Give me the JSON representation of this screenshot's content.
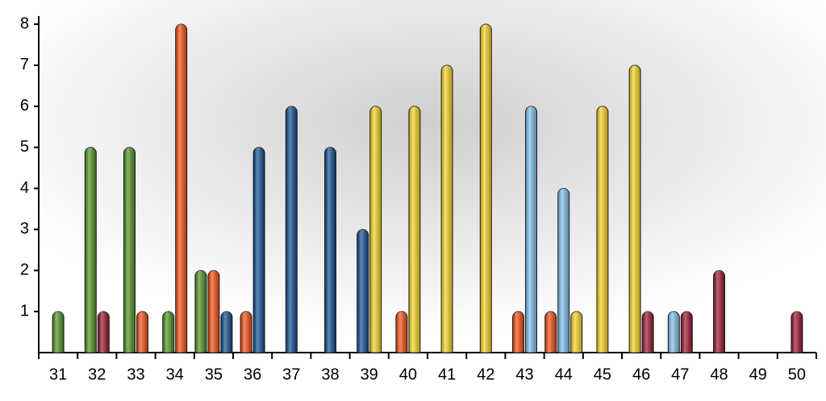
{
  "chart_data": {
    "type": "bar",
    "categories": [
      "31",
      "32",
      "33",
      "34",
      "35",
      "36",
      "37",
      "38",
      "39",
      "40",
      "41",
      "42",
      "43",
      "44",
      "45",
      "46",
      "47",
      "48",
      "49",
      "50"
    ],
    "series": [
      {
        "color": "#4e8f1c",
        "values": [
          1,
          5,
          5,
          1,
          2,
          null,
          null,
          null,
          null,
          null,
          null,
          null,
          null,
          null,
          null,
          null,
          null,
          null,
          null,
          null
        ]
      },
      {
        "color": "#f24a0c",
        "values": [
          null,
          null,
          1,
          8,
          2,
          1,
          null,
          null,
          null,
          1,
          null,
          null,
          1,
          1,
          null,
          null,
          null,
          null,
          null,
          null
        ]
      },
      {
        "color": "#0a4a8c",
        "values": [
          null,
          null,
          null,
          null,
          1,
          5,
          6,
          5,
          3,
          null,
          null,
          null,
          null,
          null,
          null,
          null,
          null,
          null,
          null,
          null
        ]
      },
      {
        "color": "#7bbcea",
        "values": [
          null,
          null,
          null,
          null,
          null,
          null,
          null,
          null,
          null,
          null,
          null,
          null,
          6,
          4,
          null,
          null,
          1,
          null,
          null,
          null
        ]
      },
      {
        "color": "#f6d21e",
        "values": [
          null,
          null,
          null,
          null,
          null,
          null,
          null,
          null,
          6,
          6,
          7,
          8,
          null,
          1,
          6,
          7,
          null,
          null,
          null,
          null
        ]
      },
      {
        "color": "#95102a",
        "values": [
          null,
          1,
          null,
          null,
          null,
          null,
          null,
          null,
          null,
          null,
          null,
          null,
          null,
          null,
          null,
          1,
          1,
          2,
          null,
          1
        ]
      }
    ],
    "ylim": [
      0,
      8
    ],
    "yticks": [
      1,
      2,
      3,
      4,
      5,
      6,
      7,
      8
    ]
  }
}
